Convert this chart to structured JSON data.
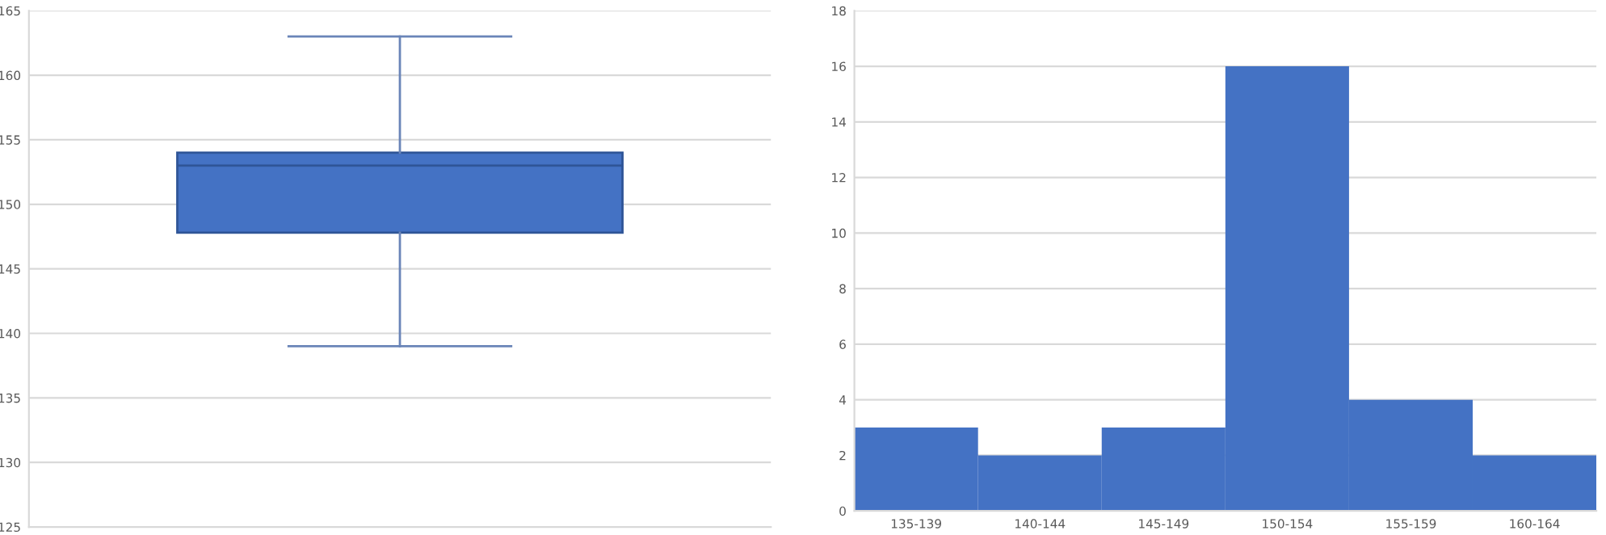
{
  "chart_data": [
    {
      "type": "box",
      "categories": [
        null
      ],
      "color": "#4472c4",
      "boxes": [
        {
          "low": 139,
          "q1": 147.8,
          "median": 153,
          "q3": 154,
          "high": 163
        }
      ],
      "ylim": [
        125,
        165
      ],
      "yticks": [
        125,
        130,
        135,
        140,
        145,
        150,
        155,
        160,
        165
      ],
      "grid": "y"
    },
    {
      "type": "bar",
      "categories": [
        "135-139",
        "140-144",
        "145-149",
        "150-154",
        "155-159",
        "160-164"
      ],
      "values": [
        3,
        2,
        3,
        16,
        4,
        2
      ],
      "color": "#4472c4",
      "ylim": [
        0,
        18
      ],
      "yticks": [
        0,
        2,
        4,
        6,
        8,
        10,
        12,
        14,
        16,
        18
      ],
      "grid": "y"
    }
  ]
}
